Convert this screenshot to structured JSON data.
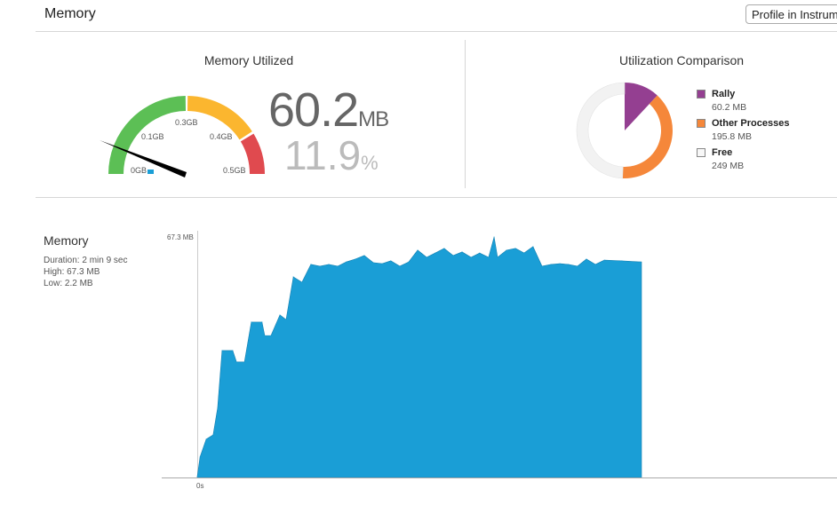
{
  "header": {
    "title": "Memory",
    "profile_button": "Profile in Instruments"
  },
  "gauge": {
    "title": "Memory Utilized",
    "labels": [
      "0GB",
      "0.1GB",
      "0.3GB",
      "0.4GB",
      "0.5GB"
    ],
    "value": "60.2",
    "unit": "MB",
    "percent": "11.9",
    "percent_unit": "%",
    "colors": {
      "green": "#5cbf55",
      "yellow": "#fbb62f",
      "red": "#e04a4f",
      "needle": "#000000"
    }
  },
  "comparison": {
    "title": "Utilization Comparison",
    "items": [
      {
        "name": "Rally",
        "value": "60.2 MB",
        "mb": 60.2,
        "color": "#943f91"
      },
      {
        "name": "Other Processes",
        "value": "195.8 MB",
        "mb": 195.8,
        "color": "#f5873a"
      },
      {
        "name": "Free",
        "value": "249 MB",
        "mb": 249,
        "color": "#f2f2f2"
      }
    ]
  },
  "memory": {
    "title": "Memory",
    "duration": "Duration: 2 min 9 sec",
    "high": "High: 67.3 MB",
    "low": "Low: 2.2 MB"
  },
  "chart_data": {
    "type": "area",
    "ylabel_top": "67.3 MB",
    "xtick": "0s",
    "ylim": [
      0,
      67.3
    ],
    "xlim": [
      0,
      129
    ],
    "color": "#1a9ed6",
    "x": [
      0,
      0.8,
      2.6,
      4.6,
      5.9,
      7.2,
      10.3,
      11.4,
      13.7,
      15.7,
      18.8,
      19.6,
      21.4,
      24,
      25.8,
      27.9,
      30.4,
      33,
      35.6,
      38.2,
      40.8,
      43.3,
      45.9,
      48.5,
      51.1,
      53.7,
      56.2,
      58.8,
      61.4,
      64,
      66.6,
      69.1,
      71.7,
      74.3,
      76.9,
      79.5,
      82,
      84.6,
      86.2,
      87.2,
      89.8,
      92.4,
      94.9,
      97.5,
      100.1,
      102.7,
      105.3,
      107.8,
      110.4,
      113,
      115.6,
      118.2,
      123.3,
      128.5
    ],
    "y": [
      0,
      5.5,
      10.5,
      11.7,
      19.2,
      35.4,
      35.4,
      32.2,
      32.2,
      43.4,
      43.4,
      39.6,
      39.6,
      45.4,
      44.1,
      56.1,
      54.6,
      59.6,
      59.1,
      59.6,
      59.1,
      60.3,
      61.1,
      62.1,
      60.1,
      59.8,
      60.6,
      59.1,
      60.3,
      63.6,
      61.6,
      62.8,
      64.1,
      62.1,
      63.1,
      61.6,
      62.8,
      61.6,
      67.3,
      61.6,
      63.6,
      64.1,
      62.8,
      64.6,
      59.1,
      59.6,
      59.8,
      59.6,
      59.1,
      61.1,
      59.6,
      60.8,
      60.6,
      60.3
    ]
  }
}
